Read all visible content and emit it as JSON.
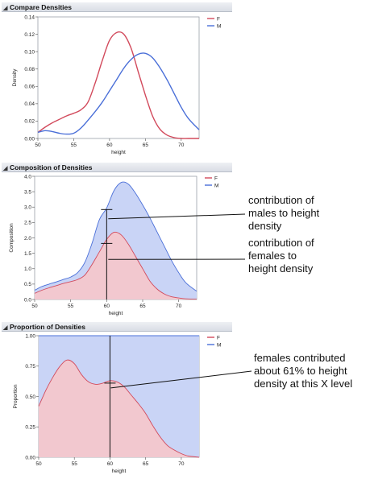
{
  "panels": [
    {
      "title": "Compare Densities",
      "ylabel": "Density",
      "xlabel": "height",
      "legend": [
        "F",
        "M"
      ]
    },
    {
      "title": "Composition of Densities",
      "ylabel": "Composition",
      "xlabel": "height",
      "legend": [
        "F",
        "M"
      ]
    },
    {
      "title": "Proportion of Densities",
      "ylabel": "Proportion",
      "xlabel": "height",
      "legend": [
        "F",
        "M"
      ]
    }
  ],
  "annotations": {
    "males": [
      "contribution of",
      "males to height",
      "density"
    ],
    "females": [
      "contribution of",
      "females to",
      "height density"
    ],
    "proportion": [
      "females contributed",
      "about 61% to height",
      "density at this X level"
    ]
  },
  "colors": {
    "F": "#d24a5c",
    "M": "#4a6fd8",
    "F_fill": "#f2c8cf",
    "M_fill": "#c9d4f6"
  },
  "chart_data": [
    {
      "type": "line",
      "title": "Compare Densities",
      "xlabel": "height",
      "ylabel": "Density",
      "xlim": [
        50,
        72.5
      ],
      "ylim": [
        0,
        0.14
      ],
      "xticks": [
        "50",
        "55",
        "60",
        "65",
        "70"
      ],
      "yticks": [
        "0.00",
        "0.02",
        "0.04",
        "0.06",
        "0.08",
        "0.10",
        "0.12",
        "0.14"
      ],
      "x": [
        50,
        51,
        52,
        53,
        54,
        55,
        56,
        57,
        58,
        59,
        60,
        61,
        62,
        63,
        64,
        65,
        66,
        67,
        68,
        69,
        70,
        71,
        72.5
      ],
      "series": [
        {
          "name": "F",
          "values": [
            0.007,
            0.013,
            0.018,
            0.022,
            0.026,
            0.029,
            0.033,
            0.042,
            0.064,
            0.09,
            0.113,
            0.122,
            0.12,
            0.104,
            0.077,
            0.05,
            0.026,
            0.011,
            0.004,
            0.001,
            0.0,
            0.0,
            0.0
          ]
        },
        {
          "name": "M",
          "values": [
            0.007,
            0.009,
            0.008,
            0.006,
            0.005,
            0.006,
            0.012,
            0.021,
            0.031,
            0.042,
            0.055,
            0.068,
            0.081,
            0.091,
            0.097,
            0.098,
            0.093,
            0.082,
            0.068,
            0.052,
            0.036,
            0.023,
            0.01
          ]
        }
      ]
    },
    {
      "type": "area",
      "title": "Composition of Densities",
      "xlabel": "height",
      "ylabel": "Composition",
      "xlim": [
        50,
        72.5
      ],
      "ylim": [
        0,
        4.0
      ],
      "xticks": [
        "50",
        "55",
        "60",
        "65",
        "70"
      ],
      "yticks": [
        "0.0",
        "0.5",
        "1.0",
        "1.5",
        "2.0",
        "2.5",
        "3.0",
        "3.5",
        "4.0"
      ],
      "stacked": true,
      "x": [
        50,
        51,
        52,
        53,
        54,
        55,
        56,
        57,
        58,
        59,
        60,
        61,
        62,
        63,
        64,
        65,
        66,
        67,
        68,
        69,
        70,
        71,
        72.5
      ],
      "series": [
        {
          "name": "F",
          "values": [
            0.2,
            0.3,
            0.38,
            0.45,
            0.52,
            0.58,
            0.65,
            0.8,
            1.15,
            1.55,
            1.95,
            2.18,
            2.1,
            1.8,
            1.4,
            1.0,
            0.6,
            0.34,
            0.18,
            0.09,
            0.05,
            0.02,
            0.01
          ]
        },
        {
          "name": "M",
          "values": [
            0.1,
            0.12,
            0.12,
            0.12,
            0.13,
            0.15,
            0.23,
            0.42,
            0.7,
            1.05,
            1.02,
            1.35,
            1.7,
            1.95,
            2.05,
            2.07,
            2.05,
            1.85,
            1.55,
            1.18,
            0.82,
            0.52,
            0.26
          ]
        }
      ],
      "annotation_marks": {
        "x": 60,
        "female_top": 1.82,
        "total_top": 2.92
      }
    },
    {
      "type": "area",
      "title": "Proportion of Densities",
      "xlabel": "height",
      "ylabel": "Proportion",
      "xlim": [
        50,
        72.5
      ],
      "ylim": [
        0,
        1.0
      ],
      "xticks": [
        "50",
        "55",
        "60",
        "65",
        "70"
      ],
      "yticks": [
        "0.00",
        "0.25",
        "0.50",
        "0.75",
        "1.00"
      ],
      "stacked": true,
      "x": [
        50,
        51,
        52,
        53,
        54,
        55,
        56,
        57,
        58,
        59,
        60,
        61,
        62,
        63,
        64,
        65,
        66,
        67,
        68,
        69,
        70,
        71,
        72.5
      ],
      "series": [
        {
          "name": "F",
          "values": [
            0.42,
            0.55,
            0.66,
            0.75,
            0.8,
            0.77,
            0.68,
            0.62,
            0.6,
            0.61,
            0.63,
            0.62,
            0.58,
            0.51,
            0.44,
            0.36,
            0.26,
            0.17,
            0.1,
            0.06,
            0.03,
            0.01,
            0.0
          ]
        },
        {
          "name": "M",
          "values": [
            0.58,
            0.45,
            0.34,
            0.25,
            0.2,
            0.23,
            0.32,
            0.38,
            0.4,
            0.39,
            0.37,
            0.38,
            0.42,
            0.49,
            0.56,
            0.64,
            0.74,
            0.83,
            0.9,
            0.94,
            0.97,
            0.99,
            1.0
          ]
        }
      ],
      "annotation_marks": {
        "x": 60,
        "female_share": 0.61
      }
    }
  ]
}
